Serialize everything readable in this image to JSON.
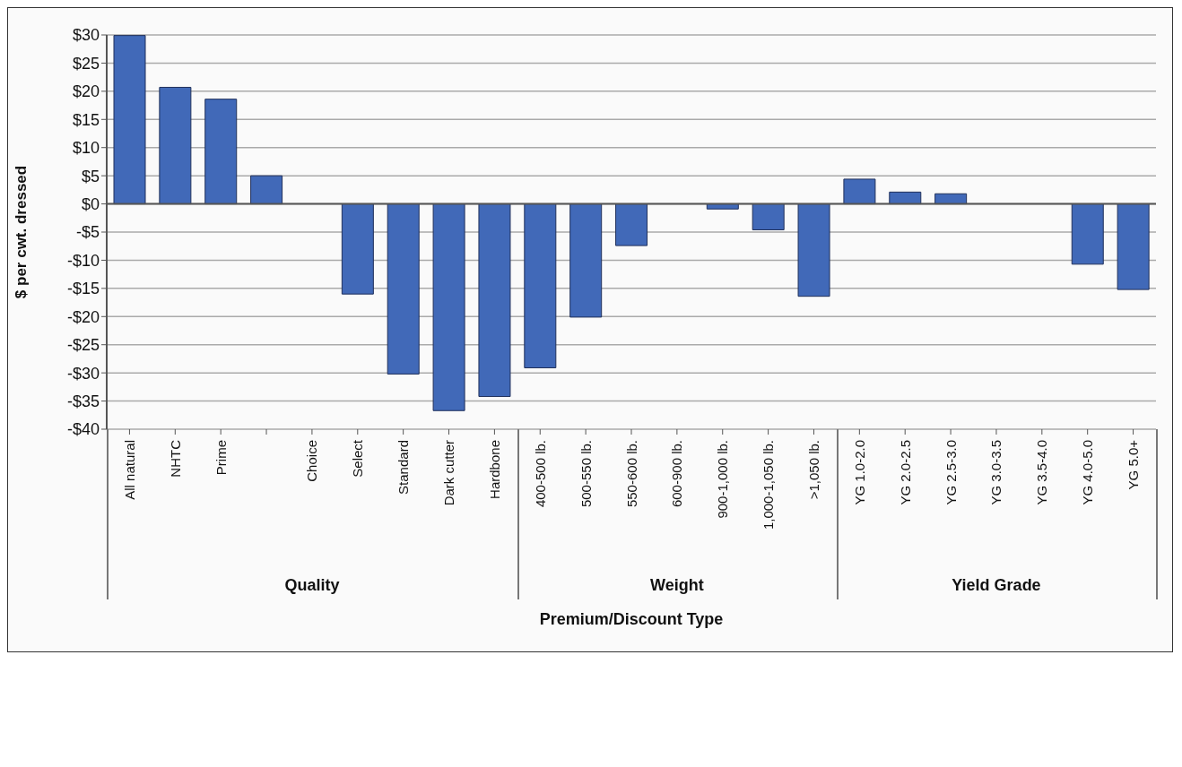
{
  "chart_data": {
    "type": "bar",
    "xlabel": "Premium/Discount Type",
    "ylabel": "$ per cwt. dressed",
    "categories": [
      "All natural",
      "NHTC",
      "Prime",
      null,
      "Choice",
      "Select",
      "Standard",
      "Dark cutter",
      "Hardbone",
      "400-500 lb.",
      "500-550 lb.",
      "550-600 lb.",
      "600-900 lb.",
      "900-1,000 lb.",
      "1,000-1,050 lb.",
      ">1,050 lb.",
      "YG 1.0-2.0",
      "YG 2.0-2.5",
      "YG 2.5-3.0",
      "YG 3.0-3.5",
      "YG 3.5-4.0",
      "YG 4.0-5.0",
      "YG 5.0+"
    ],
    "values": [
      29.9,
      20.7,
      18.6,
      5.0,
      0,
      -16.0,
      -30.2,
      -36.7,
      -34.2,
      -29.1,
      -20.1,
      -7.4,
      0,
      -0.9,
      -4.6,
      -16.4,
      4.4,
      2.1,
      1.8,
      0,
      0,
      -10.7,
      -15.2
    ],
    "color": "#4169b8",
    "ylim": [
      -40,
      30
    ],
    "yticks": [
      {
        "value": 30,
        "label": "$30"
      },
      {
        "value": 25,
        "label": "$25"
      },
      {
        "value": 20,
        "label": "$20"
      },
      {
        "value": 15,
        "label": "$15"
      },
      {
        "value": 10,
        "label": "$10"
      },
      {
        "value": 5,
        "label": "$5"
      },
      {
        "value": 0,
        "label": "$0"
      },
      {
        "value": -5,
        "label": "-$5"
      },
      {
        "value": -10,
        "label": "-$10"
      },
      {
        "value": -15,
        "label": "-$15"
      },
      {
        "value": -20,
        "label": "-$20"
      },
      {
        "value": -25,
        "label": "-$25"
      },
      {
        "value": -30,
        "label": "-$30"
      },
      {
        "value": -35,
        "label": "-$35"
      },
      {
        "value": -40,
        "label": "-$40"
      }
    ],
    "grid": "y",
    "legend": false,
    "annotations": [
      "Quality",
      "Weight",
      "Yield Grade"
    ]
  }
}
